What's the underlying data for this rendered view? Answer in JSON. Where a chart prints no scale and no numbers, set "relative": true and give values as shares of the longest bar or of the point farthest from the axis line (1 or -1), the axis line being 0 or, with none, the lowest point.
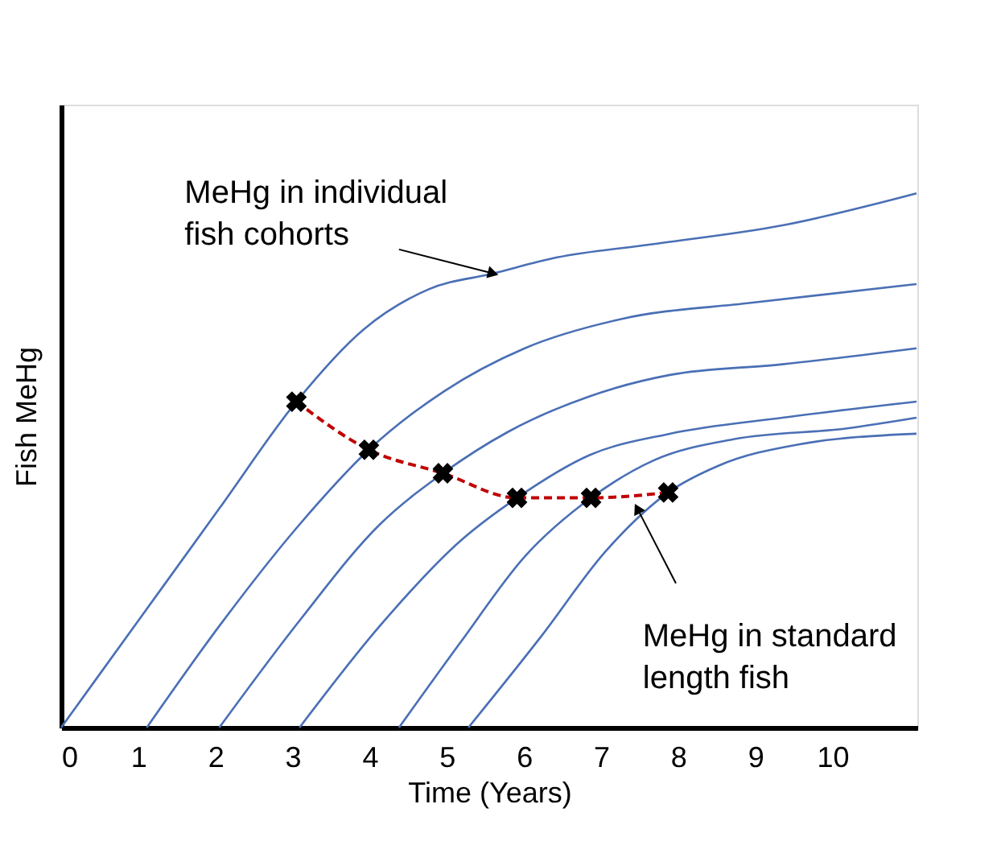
{
  "chart_data": {
    "type": "line",
    "relative": true,
    "xlabel": "Time (Years)",
    "ylabel": "Fish MeHg",
    "xlim": [
      0,
      11.1
    ],
    "xticks": [
      0,
      1,
      2,
      3,
      4,
      5,
      6,
      7,
      8,
      9,
      10
    ],
    "grid": false,
    "legend": false,
    "line_style": "solid",
    "marker": "none",
    "series": [
      {
        "color": "#4a6fb5",
        "x": [
          0,
          1.0,
          2.05,
          3.05,
          3.92,
          4.76,
          5.6,
          6.43,
          7.68,
          9.35,
          11.09
        ],
        "values": [
          0,
          0.2,
          0.41,
          0.61,
          0.745,
          0.82,
          0.85,
          0.88,
          0.905,
          0.94,
          1.0
        ]
      },
      {
        "color": "#4a6fb5",
        "x": [
          1.11,
          2.05,
          3.09,
          3.99,
          4.97,
          6.01,
          7.27,
          8.94,
          11.09
        ],
        "values": [
          0,
          0.19,
          0.38,
          0.52,
          0.63,
          0.71,
          0.765,
          0.795,
          0.83
        ]
      },
      {
        "color": "#4a6fb5",
        "x": [
          2.05,
          3.09,
          4.13,
          4.95,
          5.8,
          6.85,
          7.89,
          9.35,
          11.09
        ],
        "values": [
          0,
          0.2,
          0.38,
          0.476,
          0.554,
          0.62,
          0.66,
          0.68,
          0.71
        ]
      },
      {
        "color": "#4a6fb5",
        "x": [
          3.09,
          4.13,
          5.18,
          5.91,
          6.85,
          7.89,
          9.35,
          11.09
        ],
        "values": [
          0,
          0.19,
          0.35,
          0.43,
          0.51,
          0.55,
          0.58,
          0.61
        ]
      },
      {
        "color": "#4a6fb5",
        "x": [
          4.38,
          5.18,
          6.01,
          6.87,
          7.68,
          8.73,
          10.19,
          11.09
        ],
        "values": [
          0,
          0.16,
          0.32,
          0.43,
          0.5,
          0.54,
          0.56,
          0.58
        ]
      },
      {
        "color": "#4a6fb5",
        "x": [
          5.28,
          6.22,
          7.06,
          7.87,
          8.52,
          9.56,
          11.09
        ],
        "values": [
          0,
          0.17,
          0.33,
          0.44,
          0.49,
          0.53,
          0.55
        ]
      },
      {
        "color": "#c00000",
        "line_style": "dashed",
        "x": [
          3.05,
          3.99,
          4.95,
          5.91,
          6.87,
          7.87
        ],
        "values": [
          0.61,
          0.52,
          0.476,
          0.43,
          0.43,
          0.44
        ]
      },
      {
        "type": "scatter",
        "color": "#000000",
        "marker": "cross",
        "x": [
          3.05,
          3.99,
          4.95,
          5.91,
          6.87,
          7.87
        ],
        "values": [
          0.61,
          0.52,
          0.476,
          0.43,
          0.43,
          0.44
        ]
      }
    ],
    "annotations": [
      {
        "text": "MeHg in individual\nfish cohorts",
        "x": 5.6,
        "y": 0.85
      },
      {
        "text": "MeHg in standard\nlength fish",
        "x": 7.47,
        "y": 0.41
      }
    ]
  }
}
